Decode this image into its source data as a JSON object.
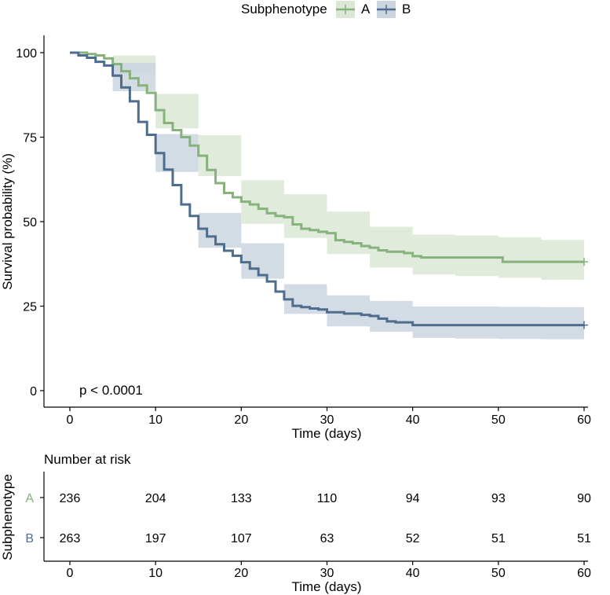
{
  "chart_data": {
    "type": "line",
    "subtype": "kaplan-meier",
    "legend": {
      "title": "Subphenotype",
      "placement": "top",
      "items": [
        {
          "label": "A",
          "color": "#86b27b",
          "band_color": "#dbe8d6"
        },
        {
          "label": "B",
          "color": "#4e6d8c",
          "band_color": "#cbd5e0"
        }
      ]
    },
    "xlabel": "Time (days)",
    "ylabel": "Survival probability (%)",
    "xlim": [
      0,
      60
    ],
    "ylim": [
      0,
      100
    ],
    "x_ticks": [
      "0",
      "10",
      "20",
      "30",
      "40",
      "50",
      "60"
    ],
    "y_ticks": [
      "0",
      "25",
      "50",
      "75",
      "100"
    ],
    "grid": false,
    "annotation": "p < 0.0001",
    "series": [
      {
        "name": "A",
        "color": "#86b27b",
        "censor_at": [
          60,
          38.1
        ],
        "steps": [
          [
            0,
            100
          ],
          [
            1,
            100
          ],
          [
            2,
            99.6
          ],
          [
            3,
            99.2
          ],
          [
            4,
            98.3
          ],
          [
            5,
            96.6
          ],
          [
            6,
            94.5
          ],
          [
            7,
            92.4
          ],
          [
            8,
            90.3
          ],
          [
            9,
            88.1
          ],
          [
            10,
            83
          ],
          [
            11,
            79.2
          ],
          [
            12,
            77.1
          ],
          [
            13,
            75
          ],
          [
            14,
            72.5
          ],
          [
            15,
            69.5
          ],
          [
            16,
            65.3
          ],
          [
            17,
            61.4
          ],
          [
            18,
            58.5
          ],
          [
            19,
            57.2
          ],
          [
            20,
            55.9
          ],
          [
            21,
            55.1
          ],
          [
            22,
            53.8
          ],
          [
            23,
            52.5
          ],
          [
            24,
            51.7
          ],
          [
            25,
            51.3
          ],
          [
            26,
            49.2
          ],
          [
            27,
            47.9
          ],
          [
            28,
            47.5
          ],
          [
            29,
            47
          ],
          [
            30,
            46.6
          ],
          [
            31,
            44.5
          ],
          [
            32,
            44
          ],
          [
            33,
            43.6
          ],
          [
            34,
            42.8
          ],
          [
            35,
            42.3
          ],
          [
            36,
            41.5
          ],
          [
            37,
            41.1
          ],
          [
            38,
            41.1
          ],
          [
            39,
            40.7
          ],
          [
            40,
            39.8
          ],
          [
            41,
            39.4
          ],
          [
            45,
            39.4
          ],
          [
            50,
            39.4
          ],
          [
            50.5,
            38.1
          ],
          [
            60,
            38.1
          ]
        ],
        "band": {
          "x": [
            0,
            5,
            10,
            15,
            20,
            25,
            30,
            35,
            40,
            45,
            50,
            55,
            60
          ],
          "lower": [
            100,
            93.5,
            77.6,
            63.5,
            49.4,
            45.2,
            40.4,
            36.4,
            34.4,
            33.9,
            33.4,
            32.8,
            32.6
          ],
          "upper": [
            100,
            99.2,
            87.8,
            75.6,
            62.3,
            58.1,
            53,
            48.5,
            46.2,
            45.9,
            45.4,
            44.6,
            44.6
          ]
        }
      },
      {
        "name": "B",
        "color": "#4e6d8c",
        "censor_at": [
          60,
          19.4
        ],
        "steps": [
          [
            0,
            100
          ],
          [
            1,
            99.2
          ],
          [
            2,
            98.5
          ],
          [
            3,
            97.3
          ],
          [
            4,
            96.2
          ],
          [
            5,
            93.2
          ],
          [
            6,
            89.7
          ],
          [
            7,
            85.6
          ],
          [
            8,
            79.5
          ],
          [
            9,
            75.7
          ],
          [
            10,
            70.3
          ],
          [
            11,
            65.4
          ],
          [
            12,
            60.8
          ],
          [
            13,
            55.1
          ],
          [
            14,
            51.7
          ],
          [
            15,
            47.9
          ],
          [
            16,
            45.6
          ],
          [
            17,
            43.3
          ],
          [
            18,
            41.4
          ],
          [
            19,
            39.9
          ],
          [
            20,
            38
          ],
          [
            21,
            36.1
          ],
          [
            22,
            34.2
          ],
          [
            23,
            32.3
          ],
          [
            24,
            29.3
          ],
          [
            25,
            27
          ],
          [
            26,
            25.1
          ],
          [
            27,
            24.7
          ],
          [
            28,
            24.3
          ],
          [
            29,
            24
          ],
          [
            30,
            23.2
          ],
          [
            32,
            22.8
          ],
          [
            34,
            22.4
          ],
          [
            35,
            22.1
          ],
          [
            36,
            21.3
          ],
          [
            37,
            20.5
          ],
          [
            38,
            20.2
          ],
          [
            40,
            19.4
          ],
          [
            45,
            19.4
          ],
          [
            50,
            19.4
          ],
          [
            60,
            19.4
          ]
        ],
        "band": {
          "x": [
            0,
            5,
            10,
            15,
            20,
            25,
            30,
            35,
            40,
            45,
            50,
            55,
            60
          ],
          "lower": [
            100,
            88.6,
            64.7,
            42.3,
            33.1,
            22.7,
            19,
            17.4,
            15.6,
            15.4,
            15.3,
            15.2,
            15.1
          ],
          "upper": [
            100,
            97,
            75.9,
            52.6,
            43.6,
            31.5,
            28.2,
            26.5,
            24.9,
            24.9,
            24.8,
            24.7,
            24.7
          ]
        }
      }
    ],
    "risk_table": {
      "title": "Number at risk",
      "ylabel": "Subphenotype",
      "xlabel": "Time (days)",
      "times": [
        0,
        10,
        20,
        30,
        40,
        50,
        60
      ],
      "rows": [
        {
          "label": "A",
          "color": "#86b27b",
          "values": [
            "236",
            "204",
            "133",
            "110",
            "94",
            "93",
            "90"
          ]
        },
        {
          "label": "B",
          "color": "#4e6d8c",
          "values": [
            "263",
            "197",
            "107",
            "63",
            "52",
            "51",
            "51"
          ]
        }
      ]
    }
  }
}
